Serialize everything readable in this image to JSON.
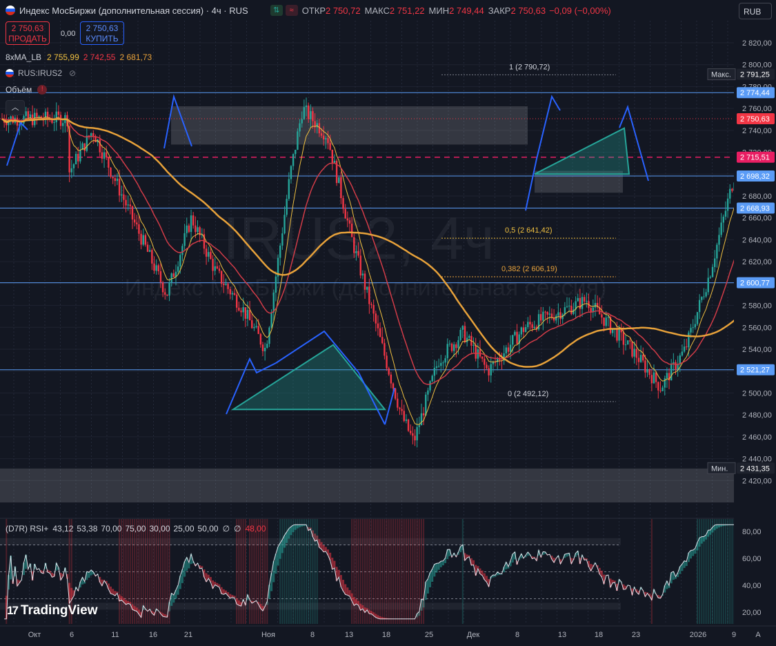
{
  "header": {
    "symbol_title": "Индекс МосБиржи (дополнительная сессия) · 4ч · RUS",
    "open_label": "ОТКР",
    "open": "2 750,72",
    "high_label": "МАКС",
    "high": "2 751,22",
    "low_label": "МИН",
    "low": "2 749,44",
    "close_label": "ЗАКР",
    "close": "2 750,63",
    "change": "−0,09 (−0,00%)",
    "currency": "RUB"
  },
  "trade": {
    "sell_price": "2 750,63",
    "sell_label": "ПРОДАТЬ",
    "spread": "0,00",
    "buy_price": "2 750,63",
    "buy_label": "КУПИТЬ"
  },
  "indicators": {
    "ma_name": "8xMA_LB",
    "ma_values": [
      "2 755,99",
      "2 742,55",
      "2 681,73"
    ],
    "compare_symbol": "RUS:IRUS2",
    "volume_label": "Объём"
  },
  "watermark": {
    "symbol": "IRUS2, 4ч",
    "description": "Индекс МосБиржи (дополнительная сессия)"
  },
  "price_axis": {
    "ticks": [
      "2 820,00",
      "2 800,00",
      "2 780,00",
      "2 760,00",
      "2 740,00",
      "2 720,00",
      "2 700,00",
      "2 680,00",
      "2 660,00",
      "2 640,00",
      "2 620,00",
      "2 600,00",
      "2 580,00",
      "2 560,00",
      "2 540,00",
      "2 520,00",
      "2 500,00",
      "2 480,00",
      "2 460,00",
      "2 440,00",
      "2 420,00"
    ],
    "max_tag": "Макс.",
    "max_value": "2 791,25",
    "min_tag": "Мин.",
    "min_value": "2 431,35",
    "level_labels": [
      "2 774,44",
      "2 750,63",
      "2 715,51",
      "2 698,32",
      "2 668,93",
      "2 600,77",
      "2 521,27"
    ]
  },
  "rsi": {
    "legend_name": "(D7R) RSI+",
    "legend_values": [
      "43,12",
      "53,38",
      "70,00",
      "75,00",
      "30,00",
      "25,00",
      "50,00"
    ],
    "legend_last": "48,00",
    "ticks": [
      "80,00",
      "60,00",
      "40,00",
      "20,00"
    ]
  },
  "time_axis": {
    "labels": [
      "Окт",
      "6",
      "11",
      "16",
      "21",
      "Ноя",
      "8",
      "13",
      "18",
      "25",
      "Дек",
      "8",
      "13",
      "18",
      "23",
      "2026",
      "9"
    ]
  },
  "fib_labels": [
    "1 (2 790,72)",
    "0,5 (2 641,42)",
    "0,382 (2 606,19)",
    "0 (2 492,12)"
  ],
  "logo_text": "TradingView",
  "colors": {
    "background": "#131722",
    "up": "#26a69a",
    "down": "#f23645",
    "level": "#5b9cf6",
    "ma_fast": "#f0c040",
    "ma_mid": "#d23c48",
    "ma_slow": "#e8a23a",
    "pattern": "#26a69a",
    "arrow": "#2962ff"
  },
  "chart_data": {
    "type": "candlestick",
    "title": "Индекс МосБиржи (дополнительная сессия) · 4ч · RUS",
    "y_range": [
      2400,
      2830
    ],
    "grid": true,
    "horizontal_levels": [
      2774.44,
      2715.51,
      2698.32,
      2668.93,
      2600.77,
      2521.27
    ],
    "last_price": 2750.63,
    "session_high": 2791.25,
    "session_low": 2431.35,
    "fibonacci": [
      {
        "level": "1",
        "price": 2790.72
      },
      {
        "level": "0,5",
        "price": 2641.42
      },
      {
        "level": "0,382",
        "price": 2606.19
      },
      {
        "level": "0",
        "price": 2492.12
      }
    ],
    "price_path": [
      {
        "date": "2025-09-29",
        "price": 2700
      },
      {
        "date": "2025-10-01",
        "price": 2740
      },
      {
        "date": "2025-10-03",
        "price": 2690
      },
      {
        "date": "2025-10-05",
        "price": 2640
      },
      {
        "date": "2025-10-07",
        "price": 2590
      },
      {
        "date": "2025-10-09",
        "price": 2660
      },
      {
        "date": "2025-10-11",
        "price": 2610
      },
      {
        "date": "2025-10-13",
        "price": 2580
      },
      {
        "date": "2025-10-15",
        "price": 2540
      },
      {
        "date": "2025-10-17",
        "price": 2700
      },
      {
        "date": "2025-10-18",
        "price": 2760
      },
      {
        "date": "2025-10-20",
        "price": 2735
      },
      {
        "date": "2025-10-22",
        "price": 2640
      },
      {
        "date": "2025-10-24",
        "price": 2560
      },
      {
        "date": "2025-10-26",
        "price": 2480
      },
      {
        "date": "2025-10-27",
        "price": 2455
      },
      {
        "date": "2025-10-29",
        "price": 2530
      },
      {
        "date": "2025-10-31",
        "price": 2555
      },
      {
        "date": "2025-11-02",
        "price": 2520
      },
      {
        "date": "2025-11-05",
        "price": 2560
      },
      {
        "date": "2025-11-08",
        "price": 2575
      },
      {
        "date": "2025-11-10",
        "price": 2585
      },
      {
        "date": "2025-11-12",
        "price": 2560
      },
      {
        "date": "2025-11-14",
        "price": 2535
      },
      {
        "date": "2025-11-16",
        "price": 2505
      },
      {
        "date": "2025-11-18",
        "price": 2540
      },
      {
        "date": "2025-11-20",
        "price": 2610
      },
      {
        "date": "2025-11-22",
        "price": 2700
      },
      {
        "date": "2025-11-25",
        "price": 2670
      },
      {
        "date": "2025-11-27",
        "price": 2615
      },
      {
        "date": "2025-11-29",
        "price": 2660
      },
      {
        "date": "2025-12-01",
        "price": 2685
      },
      {
        "date": "2025-12-03",
        "price": 2640
      },
      {
        "date": "2025-12-05",
        "price": 2660
      },
      {
        "date": "2025-12-07",
        "price": 2720
      },
      {
        "date": "2025-12-09",
        "price": 2700
      },
      {
        "date": "2025-12-11",
        "price": 2775
      },
      {
        "date": "2025-12-13",
        "price": 2730
      },
      {
        "date": "2025-12-15",
        "price": 2770
      },
      {
        "date": "2025-12-17",
        "price": 2788
      },
      {
        "date": "2025-12-19",
        "price": 2760
      },
      {
        "date": "2025-12-20",
        "price": 2750.63
      }
    ],
    "moving_averages": [
      {
        "name": "8xMA_LB 1",
        "last": 2755.99
      },
      {
        "name": "8xMA_LB 2",
        "last": 2742.55
      },
      {
        "name": "8xMA_LB 3",
        "last": 2681.73
      }
    ],
    "rsi_last": 48,
    "rsi_levels": [
      30,
      50,
      70
    ],
    "rsi_range": [
      10,
      90
    ]
  }
}
